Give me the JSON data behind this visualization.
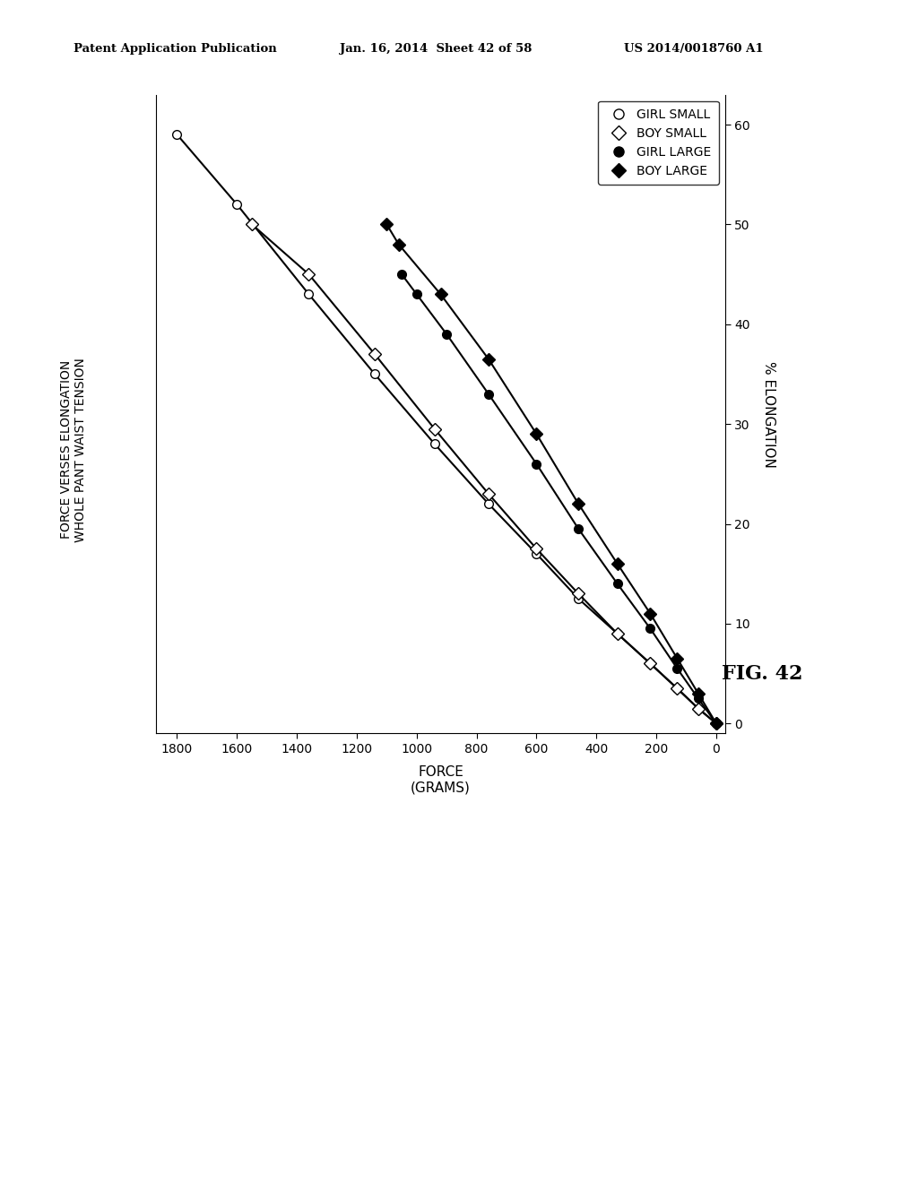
{
  "header_left": "Patent Application Publication",
  "header_center": "Jan. 16, 2014  Sheet 42 of 58",
  "header_right": "US 2014/0018760 A1",
  "title_text": "FORCE VERSES ELONGATION\nWHOLE PANT WAIST TENSION",
  "xlabel": "FORCE\n(GRAMS)",
  "ylabel": "% ELONGATION",
  "fig_label": "FIG. 42",
  "force_ticks": [
    0,
    200,
    400,
    600,
    800,
    1000,
    1200,
    1400,
    1600,
    1800
  ],
  "elong_ticks": [
    0,
    10,
    20,
    30,
    40,
    50,
    60
  ],
  "series": [
    {
      "label": "GIRL SMALL",
      "marker": "o",
      "filled": false,
      "force": [
        0,
        60,
        130,
        220,
        330,
        460,
        600,
        760,
        940,
        1140,
        1360,
        1600,
        1800
      ],
      "elongation": [
        0,
        1.5,
        3.5,
        6,
        9,
        12.5,
        17,
        22,
        28,
        35,
        43,
        52,
        59
      ]
    },
    {
      "label": "BOY SMALL",
      "marker": "D",
      "filled": false,
      "force": [
        0,
        60,
        130,
        220,
        330,
        460,
        600,
        760,
        940,
        1140,
        1360,
        1550
      ],
      "elongation": [
        0,
        1.5,
        3.5,
        6,
        9,
        13,
        17.5,
        23,
        29.5,
        37,
        45,
        50
      ]
    },
    {
      "label": "GIRL LARGE",
      "marker": "o",
      "filled": true,
      "force": [
        0,
        60,
        130,
        220,
        330,
        460,
        600,
        760,
        900,
        1000,
        1050
      ],
      "elongation": [
        0,
        2.5,
        5.5,
        9.5,
        14,
        19.5,
        26,
        33,
        39,
        43,
        45
      ]
    },
    {
      "label": "BOY LARGE",
      "marker": "D",
      "filled": true,
      "force": [
        0,
        60,
        130,
        220,
        330,
        460,
        600,
        760,
        920,
        1060,
        1100
      ],
      "elongation": [
        0,
        3,
        6.5,
        11,
        16,
        22,
        29,
        36.5,
        43,
        48,
        50
      ]
    }
  ],
  "background_color": "#ffffff"
}
